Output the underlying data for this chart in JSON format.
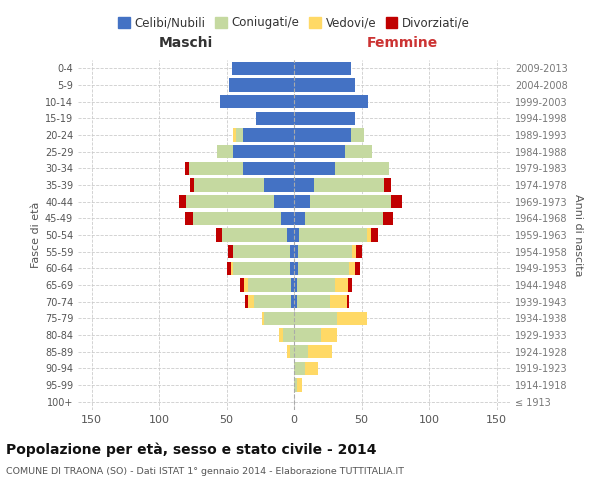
{
  "age_groups": [
    "100+",
    "95-99",
    "90-94",
    "85-89",
    "80-84",
    "75-79",
    "70-74",
    "65-69",
    "60-64",
    "55-59",
    "50-54",
    "45-49",
    "40-44",
    "35-39",
    "30-34",
    "25-29",
    "20-24",
    "15-19",
    "10-14",
    "5-9",
    "0-4"
  ],
  "birth_years": [
    "≤ 1913",
    "1914-1918",
    "1919-1923",
    "1924-1928",
    "1929-1933",
    "1934-1938",
    "1939-1943",
    "1944-1948",
    "1949-1953",
    "1954-1958",
    "1959-1963",
    "1964-1968",
    "1969-1973",
    "1974-1978",
    "1979-1983",
    "1984-1988",
    "1989-1993",
    "1994-1998",
    "1999-2003",
    "2004-2008",
    "2009-2013"
  ],
  "male_celibi": [
    0,
    0,
    0,
    0,
    0,
    0,
    2,
    2,
    3,
    3,
    5,
    10,
    15,
    22,
    38,
    45,
    38,
    28,
    55,
    48,
    46
  ],
  "male_coniugati": [
    0,
    0,
    0,
    3,
    8,
    22,
    28,
    32,
    42,
    42,
    48,
    65,
    65,
    52,
    40,
    12,
    5,
    0,
    0,
    0,
    0
  ],
  "male_vedovi": [
    0,
    0,
    0,
    2,
    3,
    2,
    4,
    3,
    2,
    0,
    0,
    0,
    0,
    0,
    0,
    0,
    2,
    0,
    0,
    0,
    0
  ],
  "male_divorziati": [
    0,
    0,
    0,
    0,
    0,
    0,
    2,
    3,
    3,
    4,
    5,
    6,
    5,
    3,
    3,
    0,
    0,
    0,
    0,
    0,
    0
  ],
  "fem_nubili": [
    0,
    0,
    0,
    0,
    0,
    0,
    2,
    2,
    3,
    3,
    4,
    8,
    12,
    15,
    30,
    38,
    42,
    45,
    55,
    45,
    42
  ],
  "fem_coniugate": [
    0,
    2,
    8,
    10,
    20,
    32,
    25,
    28,
    38,
    40,
    50,
    58,
    60,
    52,
    40,
    20,
    10,
    0,
    0,
    0,
    0
  ],
  "fem_vedove": [
    0,
    4,
    10,
    18,
    12,
    22,
    12,
    10,
    4,
    3,
    3,
    0,
    0,
    0,
    0,
    0,
    0,
    0,
    0,
    0,
    0
  ],
  "fem_divorziate": [
    0,
    0,
    0,
    0,
    0,
    0,
    2,
    3,
    4,
    4,
    5,
    7,
    8,
    5,
    0,
    0,
    0,
    0,
    0,
    0,
    0
  ],
  "colors": {
    "celibi": "#4472C4",
    "coniugati": "#C5D9A0",
    "vedovi": "#FFD966",
    "divorziati": "#C00000"
  },
  "title": "Popolazione per età, sesso e stato civile - 2014",
  "subtitle": "COMUNE DI TRAONA (SO) - Dati ISTAT 1° gennaio 2014 - Elaborazione TUTTITALIA.IT",
  "label_maschi": "Maschi",
  "label_femmine": "Femmine",
  "ylabel_left": "Fasce di età",
  "ylabel_right": "Anni di nascita",
  "xlim": 160,
  "bg_color": "#ffffff",
  "grid_color": "#cccccc",
  "legend_labels": [
    "Celibi/Nubili",
    "Coniugati/e",
    "Vedovi/e",
    "Divorziati/e"
  ]
}
